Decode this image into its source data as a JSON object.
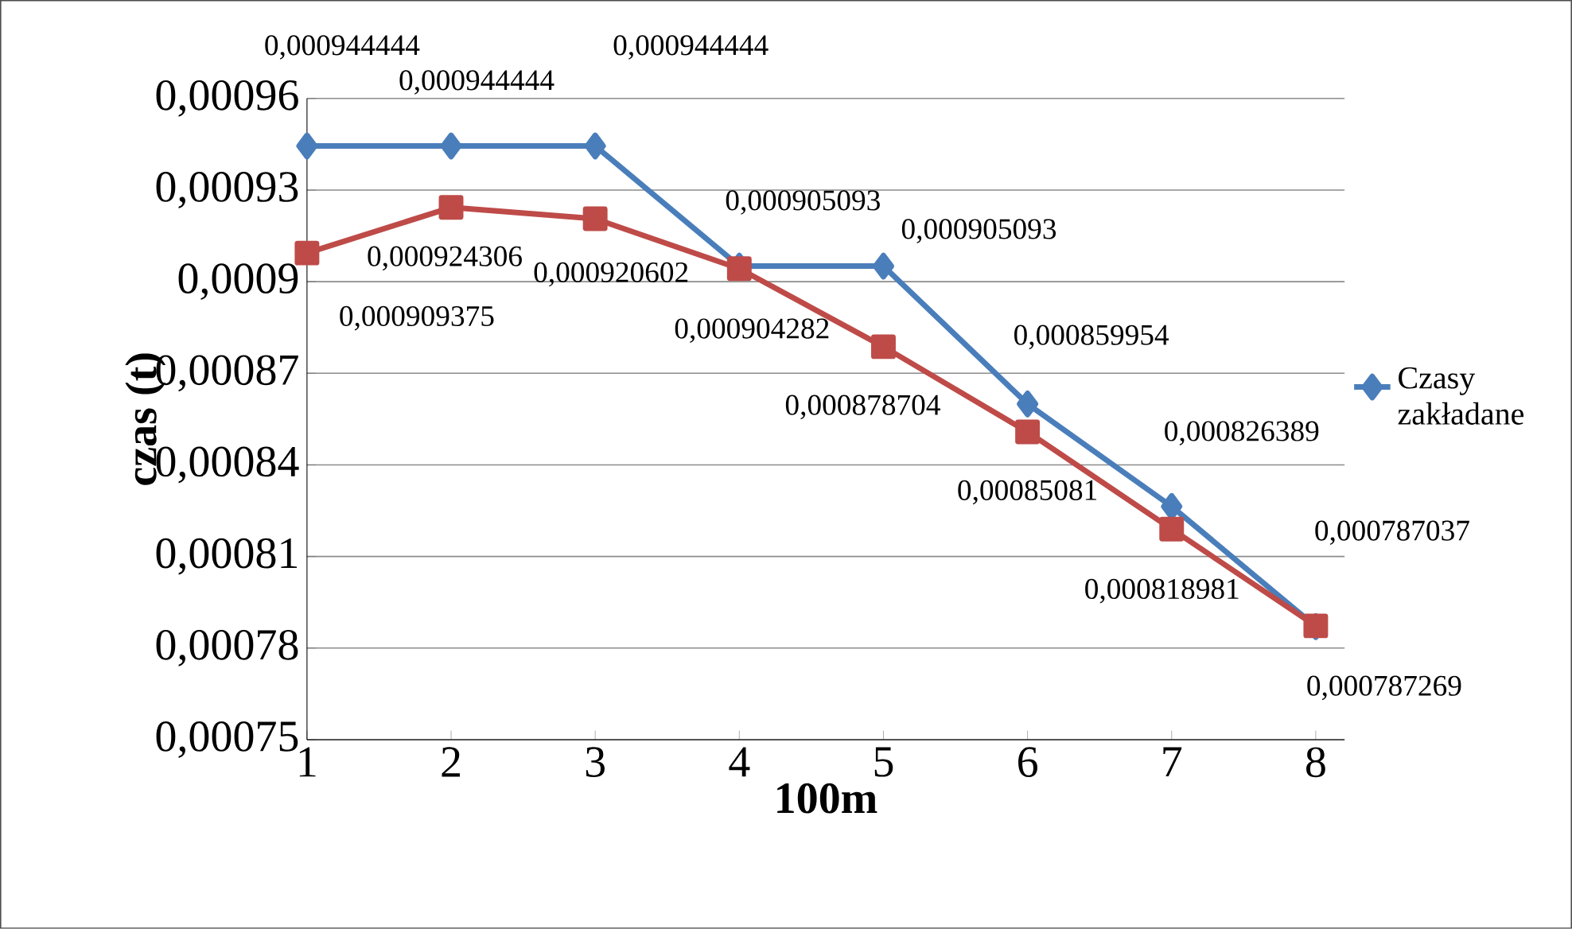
{
  "chart_data": {
    "type": "line",
    "xlabel": "100m",
    "ylabel": "czas (t)",
    "categories": [
      "1",
      "2",
      "3",
      "4",
      "5",
      "6",
      "7",
      "8"
    ],
    "series": [
      {
        "name": "Czasy zakładane",
        "color": "#4a7ebb",
        "marker": "diamond",
        "values": [
          0.000944444,
          0.000944444,
          0.000944444,
          0.000905093,
          0.000905093,
          0.000859954,
          0.000826389,
          0.000787037
        ],
        "value_labels": [
          "0,000944444",
          "0,000944444",
          "0,000944444",
          "0,000905093",
          "0,000905093",
          "0,000859954",
          "0,000826389",
          "0,000787037"
        ]
      },
      {
        "color": "#be4b48",
        "marker": "square",
        "values": [
          0.000909375,
          0.000924306,
          0.000920602,
          0.000904282,
          0.000878704,
          0.00085081,
          0.000818981,
          0.000787269
        ],
        "value_labels": [
          "0,000909375",
          "0,000924306",
          "0,000920602",
          "0,000904282",
          "0,000878704",
          "0,00085081",
          "0,000818981",
          "0,000787269"
        ]
      }
    ],
    "ylim": [
      0.00075,
      0.00096
    ],
    "yticks": [
      {
        "value": 0.00075,
        "label": "0,00075"
      },
      {
        "value": 0.00078,
        "label": "0,00078"
      },
      {
        "value": 0.00081,
        "label": "0,00081"
      },
      {
        "value": 0.00084,
        "label": "0,00084"
      },
      {
        "value": 0.00087,
        "label": "0,00087"
      },
      {
        "value": 0.0009,
        "label": "0,0009"
      },
      {
        "value": 0.00093,
        "label": "0,00093"
      },
      {
        "value": 0.00096,
        "label": "0,00096"
      }
    ],
    "grid": "y",
    "legend": "right"
  }
}
